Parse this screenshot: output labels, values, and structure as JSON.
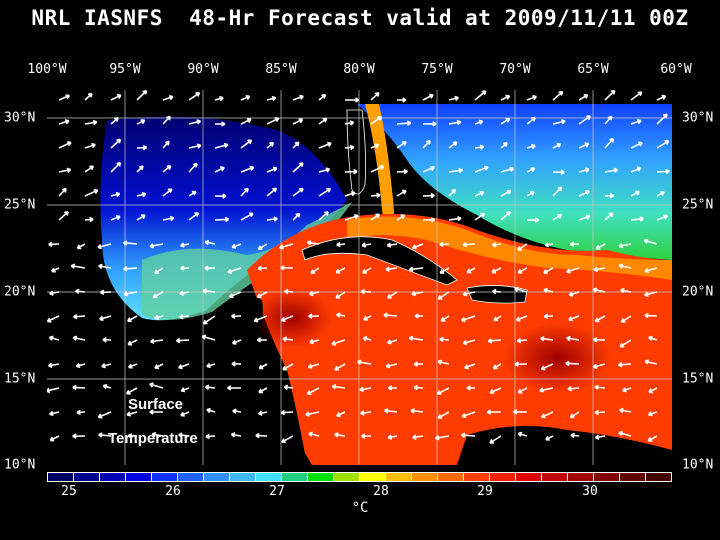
{
  "title": "NRL IASNFS  48-Hr Forecast valid at 2009/11/11 00Z",
  "lon_labels": [
    "100°W",
    "95°W",
    "90°W",
    "85°W",
    "80°W",
    "75°W",
    "70°W",
    "65°W",
    "60°W"
  ],
  "lat_labels": [
    "30°N",
    "25°N",
    "20°N",
    "15°N",
    "10°N"
  ],
  "annotation": {
    "line1": "Surface",
    "line2": "Temperature"
  },
  "colorbar": {
    "ticks": [
      "25",
      "26",
      "27",
      "28",
      "29",
      "30"
    ],
    "unit": "°C",
    "colors": [
      "#000060",
      "#00008c",
      "#0000b4",
      "#0000e0",
      "#1030ff",
      "#2060ff",
      "#3090ff",
      "#40b8ff",
      "#40e0ff",
      "#20d080",
      "#00e000",
      "#a0e000",
      "#ffff00",
      "#ffc000",
      "#ff9000",
      "#ff6a00",
      "#ff4000",
      "#f02000",
      "#e00000",
      "#c00000",
      "#a00000",
      "#800000",
      "#600000",
      "#400000"
    ]
  },
  "map": {
    "lon_range": [
      -100,
      -60
    ],
    "lat_range": [
      10,
      31
    ],
    "grid": true,
    "field": "Surface Temperature (°C)"
  }
}
